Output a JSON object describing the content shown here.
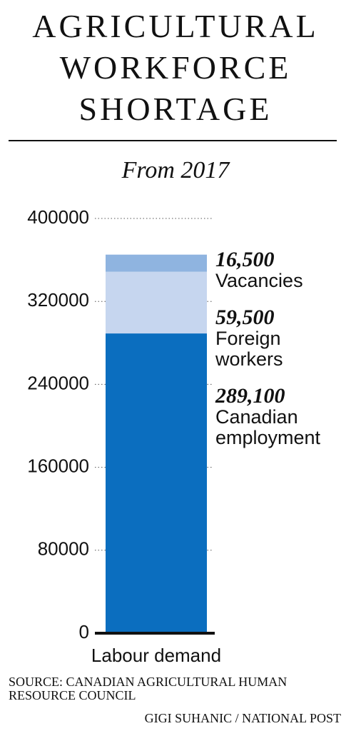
{
  "chart_data": {
    "type": "stacked_bar",
    "title": "AGRICULTURAL WORKFORCE SHORTAGE",
    "subtitle": "From 2017",
    "categories": [
      "Labour demand"
    ],
    "series": [
      {
        "name": "Canadian employment",
        "color": "#0b6ebf",
        "values": [
          289100
        ],
        "value_labels": [
          "289,100"
        ]
      },
      {
        "name": "Foreign workers",
        "color": "#c6d6ef",
        "values": [
          59500
        ],
        "value_labels": [
          "59,500"
        ]
      },
      {
        "name": "Vacancies",
        "color": "#8fb4e0",
        "values": [
          16500
        ],
        "value_labels": [
          "16,500"
        ]
      }
    ],
    "ylim": [
      0,
      400000
    ],
    "yticks": [
      0,
      80000,
      160000,
      240000,
      320000,
      400000
    ],
    "grid": true,
    "source": "SOURCE: CANADIAN AGRICULTURAL HUMAN RESOURCE COUNCIL",
    "credit": "GIGI SUHANIC / NATIONAL POST"
  }
}
